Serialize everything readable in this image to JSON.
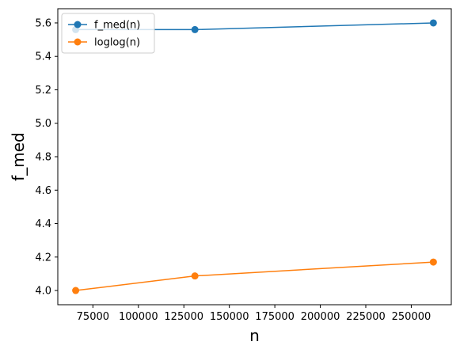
{
  "chart_data": {
    "type": "line",
    "title": "",
    "xlabel": "n",
    "ylabel": "f_med",
    "x": [
      65536,
      131072,
      262144
    ],
    "series": [
      {
        "name": "f_med(n)",
        "values": [
          5.56,
          5.56,
          5.6
        ],
        "color": "#1f77b4"
      },
      {
        "name": "loglog(n)",
        "values": [
          4.0,
          4.087,
          4.17
        ],
        "color": "#ff7f0e"
      }
    ],
    "xlim": [
      55700,
      272000
    ],
    "ylim": [
      3.915,
      5.685
    ],
    "xticks": [
      75000,
      100000,
      125000,
      150000,
      175000,
      200000,
      225000,
      250000
    ],
    "xtick_labels": [
      "75000",
      "100000",
      "125000",
      "150000",
      "175000",
      "200000",
      "225000",
      "250000"
    ],
    "yticks": [
      4.0,
      4.2,
      4.4,
      4.6,
      4.8,
      5.0,
      5.2,
      5.4,
      5.6
    ],
    "ytick_labels": [
      "4.0",
      "4.2",
      "4.4",
      "4.6",
      "4.8",
      "5.0",
      "5.2",
      "5.4",
      "5.6"
    ],
    "legend_position": "top-left",
    "grid": false,
    "marker": "circle"
  }
}
